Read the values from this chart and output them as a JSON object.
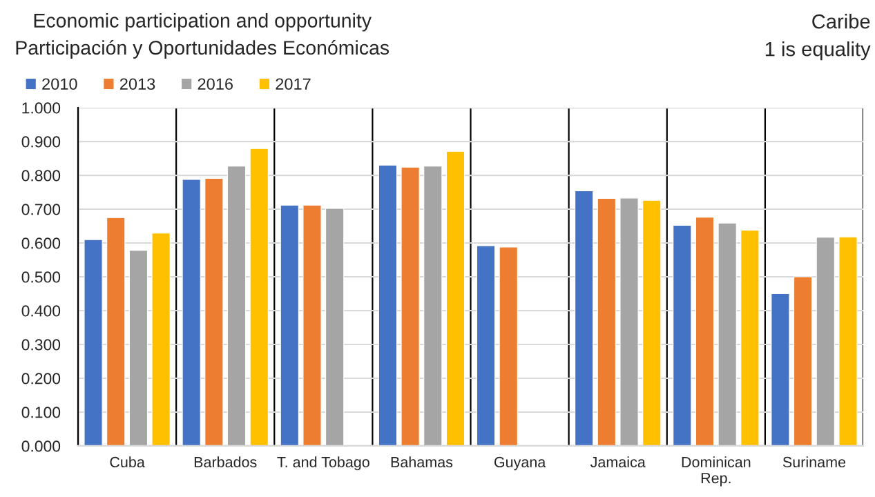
{
  "chart_data": {
    "type": "bar",
    "title": "Economic participation and opportunity",
    "subtitle": "Participación y Oportunidades Económicas",
    "annotations": [
      "Caribe",
      "1 is equality"
    ],
    "categories": [
      "Cuba",
      "Barbados",
      "T. and Tobago",
      "Bahamas",
      "Guyana",
      "Jamaica",
      "Dominican\nRep.",
      "Suriname"
    ],
    "series": [
      {
        "name": "2010",
        "color": "#4472c4",
        "values": [
          0.61,
          0.788,
          0.712,
          0.83,
          0.592,
          0.754,
          0.652,
          0.45
        ]
      },
      {
        "name": "2013",
        "color": "#ed7d31",
        "values": [
          0.675,
          0.791,
          0.712,
          0.824,
          0.588,
          0.732,
          0.676,
          0.5
        ]
      },
      {
        "name": "2016",
        "color": "#a5a5a5",
        "values": [
          0.578,
          0.827,
          0.702,
          0.827,
          null,
          0.733,
          0.659,
          0.617
        ]
      },
      {
        "name": "2017",
        "color": "#ffc000",
        "values": [
          0.629,
          0.879,
          null,
          0.871,
          null,
          0.726,
          0.638,
          0.618
        ]
      }
    ],
    "ylim": [
      0,
      1
    ],
    "yticks": [
      {
        "value": 0,
        "label": "0.000"
      },
      {
        "value": 0.1,
        "label": "0.100"
      },
      {
        "value": 0.2,
        "label": "0.200"
      },
      {
        "value": 0.3,
        "label": "0.300"
      },
      {
        "value": 0.4,
        "label": "0.400"
      },
      {
        "value": 0.5,
        "label": "0.500"
      },
      {
        "value": 0.6,
        "label": "0.600"
      },
      {
        "value": 0.7,
        "label": "0.700"
      },
      {
        "value": 0.8,
        "label": "0.800"
      },
      {
        "value": 0.9,
        "label": "0.900"
      },
      {
        "value": 1,
        "label": "1.000"
      }
    ],
    "grid": true,
    "legend": "top left"
  }
}
